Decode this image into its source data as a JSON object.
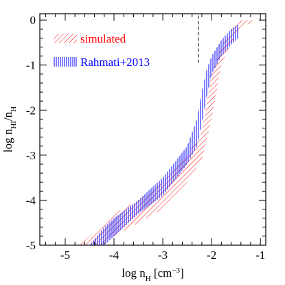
{
  "chart_data": {
    "type": "band",
    "xlabel": [
      {
        "text": "log n"
      },
      {
        "text": "H",
        "sub": true
      },
      {
        "text": " [cm"
      },
      {
        "text": "−3",
        "sup": true
      },
      {
        "text": "]"
      }
    ],
    "ylabel": [
      {
        "text": "log n"
      },
      {
        "text": "HI",
        "sub": true
      },
      {
        "text": "/n"
      },
      {
        "text": "H",
        "sub": true
      }
    ],
    "xlim": [
      -5.52,
      -0.89
    ],
    "ylim": [
      -5,
      0.14
    ],
    "xticks": [
      -5,
      -4,
      -3,
      -2,
      -1
    ],
    "yticks": [
      0,
      -1,
      -2,
      -3,
      -4,
      -5
    ],
    "xminorticks": [
      -5.4,
      -5.2,
      -4.8,
      -4.6,
      -4.4,
      -4.2,
      -3.8,
      -3.6,
      -3.4,
      -3.2,
      -2.8,
      -2.6,
      -2.4,
      -2.2,
      -1.8,
      -1.6,
      -1.4,
      -1.2
    ],
    "yminorticks": [
      -0.2,
      -0.4,
      -0.6,
      -0.8,
      -1.2,
      -1.4,
      -1.6,
      -1.8,
      -2.2,
      -2.4,
      -2.6,
      -2.8,
      -3.2,
      -3.4,
      -3.6,
      -3.8,
      -4.2,
      -4.4,
      -4.6,
      -4.8
    ],
    "legend": "upper left",
    "series": [
      {
        "name": "simulated",
        "color": "#ff0000",
        "hatch": "diagonal",
        "x": [
          -4.7,
          -4.3,
          -4.0,
          -3.5,
          -3.0,
          -2.5,
          -2.2,
          -2.0,
          -1.8,
          -1.6,
          -1.4,
          -1.15
        ],
        "upper": [
          -5,
          -4.6,
          -4.3,
          -4.0,
          -3.6,
          -3.0,
          -2.5,
          -1.2,
          -0.6,
          -0.25,
          0.0,
          0.0
        ],
        "lower": [
          -5,
          -5,
          -4.8,
          -4.5,
          -4.2,
          -3.6,
          -3.1,
          -2.2,
          -1.0,
          -0.5,
          -0.15,
          -0.05
        ]
      },
      {
        "name": "Rahmati+2013",
        "color": "#0000ff",
        "hatch": "vertical",
        "x": [
          -4.5,
          -4.2,
          -4.0,
          -3.5,
          -3.0,
          -2.5,
          -2.3,
          -2.2,
          -2.1,
          -2.0,
          -1.8,
          -1.6,
          -1.45
        ],
        "upper": [
          -5,
          -4.6,
          -4.4,
          -4.0,
          -3.5,
          -2.8,
          -2.2,
          -1.6,
          -1.1,
          -0.8,
          -0.45,
          -0.2,
          -0.1
        ],
        "lower": [
          -5,
          -5,
          -4.8,
          -4.3,
          -3.9,
          -3.2,
          -2.8,
          -2.3,
          -1.7,
          -1.2,
          -0.8,
          -0.55,
          -0.4
        ]
      }
    ],
    "vlines": [
      {
        "x": -2.27,
        "ymin": -0.95,
        "ymax": 0.1,
        "style": "dashed"
      }
    ]
  }
}
